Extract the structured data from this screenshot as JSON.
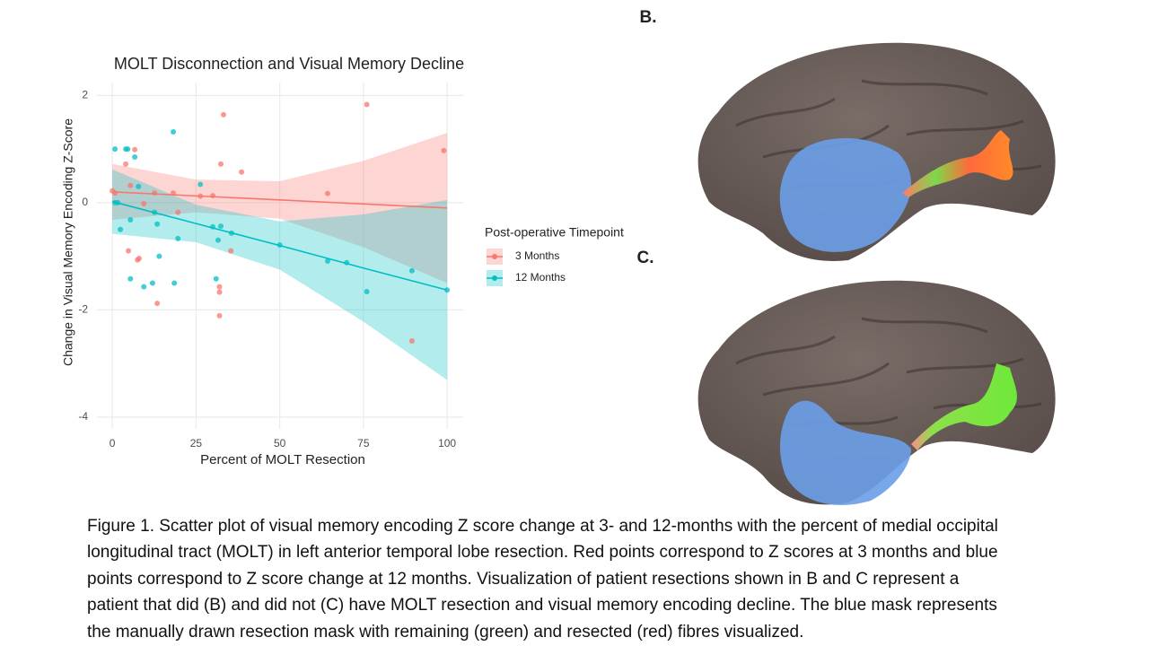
{
  "chart_data": {
    "type": "scatter",
    "title": "MOLT Disconnection and Visual Memory Decline",
    "x_label": "Percent of MOLT Resection",
    "y_label": "Change in Visual Memory Encoding Z-Score",
    "legend_title": "Post-operative Timepoint",
    "legend": "right",
    "grid": true,
    "xlim": [
      -4.6,
      104.8
    ],
    "ylim": [
      -4.22,
      2.24
    ],
    "xticks": [
      0,
      25,
      50,
      75,
      100
    ],
    "yticks": [
      -4,
      -2,
      0,
      2
    ],
    "series": [
      {
        "name": "3 Months",
        "color": "#F8766D",
        "x": [
          0,
          0.8,
          4,
          6.7,
          5.4,
          4.8,
          7.5,
          8,
          12.6,
          13.4,
          9.4,
          18.2,
          19.6,
          26.3,
          30,
          32,
          32,
          32,
          32.4,
          33.2,
          35.4,
          38.6,
          64.3,
          76,
          89.5,
          99
        ],
        "values": [
          0.22,
          0.18,
          0.72,
          0.99,
          0.32,
          -0.9,
          -1.07,
          -1.04,
          0.18,
          -1.88,
          -0.02,
          0.18,
          -0.18,
          0.12,
          0.13,
          -1.57,
          -1.67,
          -2.11,
          0.72,
          1.64,
          -0.9,
          0.57,
          0.17,
          1.83,
          -2.58,
          0.97
        ],
        "fit": {
          "x": [
            0,
            25,
            50,
            75,
            100
          ],
          "values": [
            0.2,
            0.125,
            0.05,
            -0.025,
            -0.1
          ],
          "lower": [
            -0.32,
            -0.18,
            -0.3,
            -0.83,
            -1.5
          ],
          "upper": [
            0.72,
            0.43,
            0.4,
            0.78,
            1.3
          ]
        }
      },
      {
        "name": "12 Months",
        "color": "#00BFC4",
        "x": [
          0.8,
          4,
          4.6,
          6.7,
          7.8,
          0.8,
          1.6,
          2.4,
          5.4,
          5.4,
          9.4,
          12,
          12.6,
          13.4,
          14,
          18.2,
          18.5,
          19.6,
          26.3,
          30,
          31,
          31.6,
          32.4,
          35.6,
          50,
          64.3,
          70,
          76,
          89.5,
          100
        ],
        "values": [
          1.0,
          1.0,
          1.0,
          0.85,
          0.3,
          0,
          0,
          -0.5,
          -0.32,
          -1.42,
          -1.57,
          -1.5,
          -0.18,
          -0.4,
          -1.0,
          1.32,
          -1.5,
          -0.67,
          0.34,
          -0.45,
          -1.42,
          -0.7,
          -0.44,
          -0.57,
          -0.79,
          -1.09,
          -1.12,
          -1.66,
          -1.27,
          -1.63
        ],
        "fit": {
          "x": [
            0,
            25,
            50,
            75,
            100
          ],
          "values": [
            0.02,
            -0.39,
            -0.8,
            -1.22,
            -1.63
          ],
          "lower": [
            -0.58,
            -0.74,
            -1.25,
            -2.22,
            -3.31
          ],
          "upper": [
            0.62,
            -0.04,
            -0.35,
            -0.22,
            0.05
          ]
        }
      }
    ]
  },
  "panels": [
    "B.",
    "C."
  ],
  "caption": [
    "Figure 1. Scatter plot of visual memory encoding Z score change at 3- and 12-months with the percent of medial occipital",
    "longitudinal tract (MOLT) in left anterior temporal lobe resection. Red points correspond to Z scores at 3 months and blue",
    "points correspond to Z score change at 12 months. Visualization of patient resections shown in B and C represent a",
    "patient that did (B) and did not (C) have MOLT resection and visual memory encoding decline. The blue mask represents",
    "the manually drawn resection mask with remaining (green) and resected (red) fibres visualized."
  ]
}
